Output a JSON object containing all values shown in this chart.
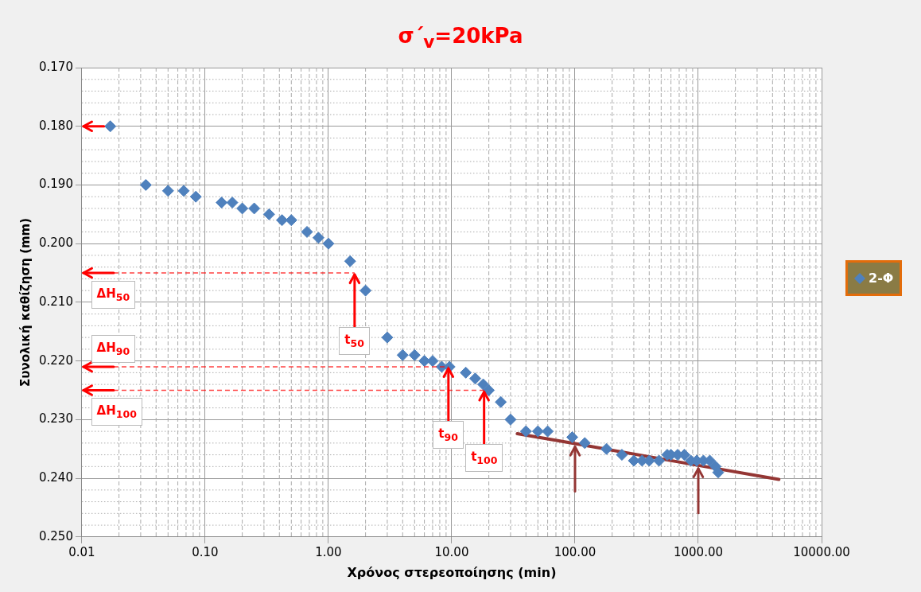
{
  "chart_data": {
    "type": "scatter",
    "title": "σ΄$_{v}$=20kPa",
    "xlabel": "Χρόνος στερεοποίησης (min)",
    "ylabel": "Συνολική καθίζηση (mm)",
    "log": "x",
    "xlim": [
      0.01,
      10000
    ],
    "xticks": [
      {
        "value": 0.01,
        "label": "0.01"
      },
      {
        "value": 0.1,
        "label": "0.10"
      },
      {
        "value": 1,
        "label": "1.00"
      },
      {
        "value": 10,
        "label": "10.00"
      },
      {
        "value": 100,
        "label": "100.00"
      },
      {
        "value": 1000,
        "label": "1000.00"
      },
      {
        "value": 10000,
        "label": "10000.00"
      }
    ],
    "ylim": [
      0.25,
      0.17
    ],
    "yticks": [
      {
        "value": 0.17,
        "label": "0.170"
      },
      {
        "value": 0.18,
        "label": "0.180"
      },
      {
        "value": 0.19,
        "label": "0.190"
      },
      {
        "value": 0.2,
        "label": "0.200"
      },
      {
        "value": 0.21,
        "label": "0.210"
      },
      {
        "value": 0.22,
        "label": "0.220"
      },
      {
        "value": 0.23,
        "label": "0.230"
      },
      {
        "value": 0.24,
        "label": "0.240"
      },
      {
        "value": 0.25,
        "label": "0.250"
      }
    ],
    "grid": true,
    "legend": "right",
    "marker": "diamond",
    "series": [
      {
        "name": "2-Φ",
        "color": "#4f81bd",
        "x": [
          0.017,
          0.033,
          0.05,
          0.067,
          0.084,
          0.136,
          0.166,
          0.2,
          0.25,
          0.33,
          0.42,
          0.5,
          0.67,
          0.83,
          1,
          1.5,
          2,
          3,
          4,
          5,
          6,
          7,
          8.3,
          9.6,
          13,
          15.5,
          18,
          20,
          25,
          30,
          40,
          50,
          60,
          95,
          120,
          180,
          240,
          300,
          350,
          400,
          480,
          560,
          600,
          680,
          770,
          870,
          970,
          1100,
          1240,
          1380,
          1450
        ],
        "values": [
          0.18,
          0.19,
          0.191,
          0.191,
          0.192,
          0.193,
          0.193,
          0.194,
          0.194,
          0.195,
          0.196,
          0.196,
          0.198,
          0.199,
          0.2,
          0.203,
          0.208,
          0.216,
          0.219,
          0.219,
          0.22,
          0.22,
          0.221,
          0.221,
          0.222,
          0.223,
          0.224,
          0.225,
          0.227,
          0.23,
          0.232,
          0.232,
          0.232,
          0.233,
          0.234,
          0.235,
          0.236,
          0.237,
          0.237,
          0.237,
          0.237,
          0.236,
          0.236,
          0.236,
          0.236,
          0.237,
          0.237,
          0.237,
          0.237,
          0.238,
          0.239
        ]
      },
      {
        "type": "line",
        "color": "#943634",
        "x": [
          34,
          100,
          1000,
          4500
        ],
        "values": [
          0.2324,
          0.2341,
          0.2378,
          0.2402
        ],
        "marker": "none"
      }
    ],
    "ref_lines": [
      {
        "axis": "y",
        "value": 0.205,
        "color": "#ff0000",
        "line_style": "dashed"
      },
      {
        "axis": "y",
        "value": 0.221,
        "color": "#ff0000",
        "line_style": "dashed"
      },
      {
        "axis": "y",
        "value": 0.225,
        "color": "#ff0000",
        "line_style": "dashed"
      }
    ],
    "annotations": [
      {
        "text": "ΔH$_{50}$",
        "x": 0.013,
        "y": 0.205
      },
      {
        "text": "ΔH$_{90}$",
        "x": 0.013,
        "y": 0.221
      },
      {
        "text": "ΔH$_{100}$",
        "x": 0.013,
        "y": 0.225
      },
      {
        "text": "t$_{50}$",
        "x": 1.63,
        "y": 0.205
      },
      {
        "text": "t$_{90}$",
        "x": 9.4,
        "y": 0.221
      },
      {
        "text": "t$_{100}$",
        "x": 18.3,
        "y": 0.225
      }
    ]
  }
}
